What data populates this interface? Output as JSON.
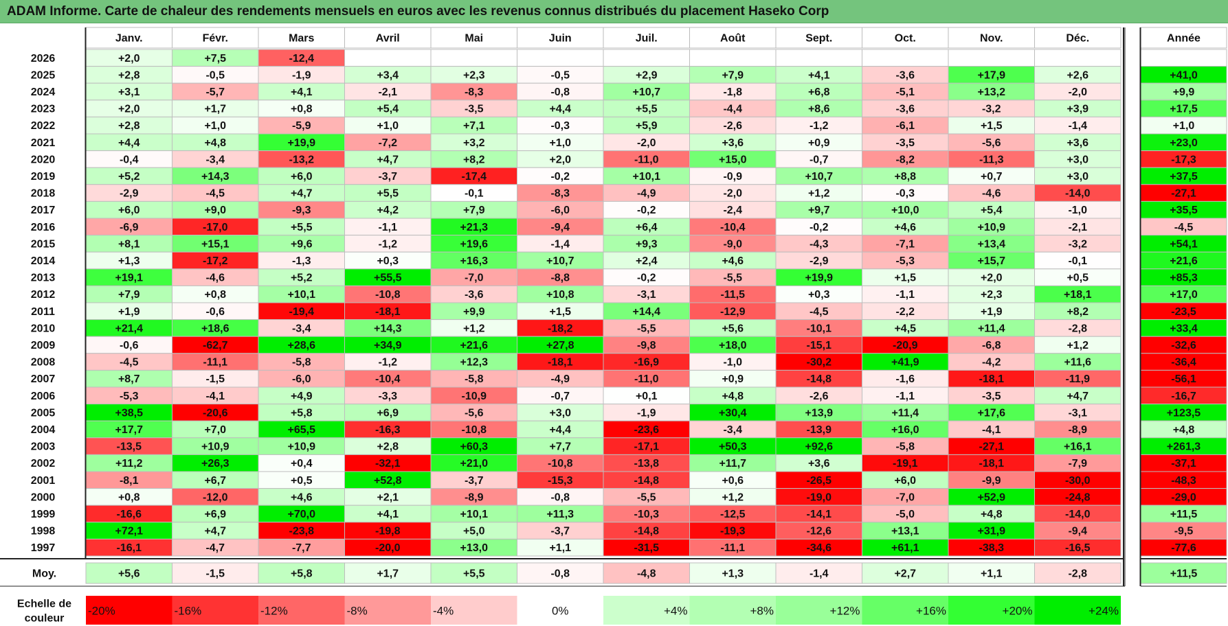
{
  "title": "ADAM Informe. Carte de chaleur des rendements mensuels en euros avec les revenus connus distribués du placement Haseko Corp",
  "chart_data": {
    "type": "heatmap",
    "columns": [
      "Janv.",
      "Févr.",
      "Mars",
      "Avril",
      "Mai",
      "Juin",
      "Juil.",
      "Août",
      "Sept.",
      "Oct.",
      "Nov.",
      "Déc."
    ],
    "annual_header": "Année",
    "rows": [
      {
        "year": "2026",
        "months": [
          "+2,0",
          "+7,5",
          "-12,4",
          "",
          "",
          "",
          "",
          "",
          "",
          "",
          "",
          ""
        ],
        "annual": ""
      },
      {
        "year": "2025",
        "months": [
          "+2,8",
          "-0,5",
          "-1,9",
          "+3,4",
          "+2,3",
          "-0,5",
          "+2,9",
          "+7,9",
          "+4,1",
          "-3,6",
          "+17,9",
          "+2,6"
        ],
        "annual": "+41,0"
      },
      {
        "year": "2024",
        "months": [
          "+3,1",
          "-5,7",
          "+4,1",
          "-2,1",
          "-8,3",
          "-0,8",
          "+10,7",
          "-1,8",
          "+6,8",
          "-5,1",
          "+13,2",
          "-2,0"
        ],
        "annual": "+9,9"
      },
      {
        "year": "2023",
        "months": [
          "+2,0",
          "+1,7",
          "+0,8",
          "+5,4",
          "-3,5",
          "+4,4",
          "+5,5",
          "-4,4",
          "+8,6",
          "-3,6",
          "-3,2",
          "+3,9"
        ],
        "annual": "+17,5"
      },
      {
        "year": "2022",
        "months": [
          "+2,8",
          "+1,0",
          "-5,9",
          "+1,0",
          "+7,1",
          "-0,3",
          "+5,9",
          "-2,6",
          "-1,2",
          "-6,1",
          "+1,5",
          "-1,4"
        ],
        "annual": "+1,0"
      },
      {
        "year": "2021",
        "months": [
          "+4,4",
          "+4,8",
          "+19,9",
          "-7,2",
          "+3,2",
          "+1,0",
          "-2,0",
          "+3,6",
          "+0,9",
          "-3,5",
          "-5,6",
          "+3,6"
        ],
        "annual": "+23,0"
      },
      {
        "year": "2020",
        "months": [
          "-0,4",
          "-3,4",
          "-13,2",
          "+4,7",
          "+8,2",
          "+2,0",
          "-11,0",
          "+15,0",
          "-0,7",
          "-8,2",
          "-11,3",
          "+3,0"
        ],
        "annual": "-17,3"
      },
      {
        "year": "2019",
        "months": [
          "+5,2",
          "+14,3",
          "+6,0",
          "-3,7",
          "-17,4",
          "-0,2",
          "+10,1",
          "-0,9",
          "+10,7",
          "+8,8",
          "+0,7",
          "+3,0"
        ],
        "annual": "+37,5"
      },
      {
        "year": "2018",
        "months": [
          "-2,9",
          "-4,5",
          "+4,7",
          "+5,5",
          "-0,1",
          "-8,3",
          "-4,9",
          "-2,0",
          "+1,2",
          "-0,3",
          "-4,6",
          "-14,0"
        ],
        "annual": "-27,1"
      },
      {
        "year": "2017",
        "months": [
          "+6,0",
          "+9,0",
          "-9,3",
          "+4,2",
          "+7,9",
          "-6,0",
          "-0,2",
          "-2,4",
          "+9,7",
          "+10,0",
          "+5,4",
          "-1,0"
        ],
        "annual": "+35,5"
      },
      {
        "year": "2016",
        "months": [
          "-6,9",
          "-17,0",
          "+5,5",
          "-1,1",
          "+21,3",
          "-9,4",
          "+6,4",
          "-10,4",
          "-0,2",
          "+4,6",
          "+10,9",
          "-2,1"
        ],
        "annual": "-4,5"
      },
      {
        "year": "2015",
        "months": [
          "+8,1",
          "+15,1",
          "+9,6",
          "-1,2",
          "+19,6",
          "-1,4",
          "+9,3",
          "-9,0",
          "-4,3",
          "-7,1",
          "+13,4",
          "-3,2"
        ],
        "annual": "+54,1"
      },
      {
        "year": "2014",
        "months": [
          "+1,3",
          "-17,2",
          "-1,3",
          "+0,3",
          "+16,3",
          "+10,7",
          "+2,4",
          "+4,6",
          "-2,9",
          "-5,3",
          "+15,7",
          "-0,1"
        ],
        "annual": "+21,6"
      },
      {
        "year": "2013",
        "months": [
          "+19,1",
          "-4,6",
          "+5,2",
          "+55,5",
          "-7,0",
          "-8,8",
          "-0,2",
          "-5,5",
          "+19,9",
          "+1,5",
          "+2,0",
          "+0,5"
        ],
        "annual": "+85,3"
      },
      {
        "year": "2012",
        "months": [
          "+7,9",
          "+0,8",
          "+10,1",
          "-10,8",
          "-3,6",
          "+10,8",
          "-3,1",
          "-11,5",
          "+0,3",
          "-1,1",
          "+2,3",
          "+18,1"
        ],
        "annual": "+17,0"
      },
      {
        "year": "2011",
        "months": [
          "+1,9",
          "-0,6",
          "-19,4",
          "-18,1",
          "+9,9",
          "+1,5",
          "+14,4",
          "-12,9",
          "-4,5",
          "-2,2",
          "+1,9",
          "+8,2"
        ],
        "annual": "-23,5"
      },
      {
        "year": "2010",
        "months": [
          "+21,4",
          "+18,6",
          "-3,4",
          "+14,3",
          "+1,2",
          "-18,2",
          "-5,5",
          "+5,6",
          "-10,1",
          "+4,5",
          "+11,4",
          "-2,8"
        ],
        "annual": "+33,4"
      },
      {
        "year": "2009",
        "months": [
          "-0,6",
          "-62,7",
          "+28,6",
          "+34,9",
          "+21,6",
          "+27,8",
          "-9,8",
          "+18,0",
          "-15,1",
          "-20,9",
          "-6,8",
          "+1,2"
        ],
        "annual": "-32,6"
      },
      {
        "year": "2008",
        "months": [
          "-4,5",
          "-11,1",
          "-5,8",
          "-1,2",
          "+12,3",
          "-18,1",
          "-16,9",
          "-1,0",
          "-30,2",
          "+41,9",
          "-4,2",
          "+11,6"
        ],
        "annual": "-36,4"
      },
      {
        "year": "2007",
        "months": [
          "+8,7",
          "-1,5",
          "-6,0",
          "-10,4",
          "-5,8",
          "-4,9",
          "-11,0",
          "+0,9",
          "-14,8",
          "-1,6",
          "-18,1",
          "-11,9"
        ],
        "annual": "-56,1"
      },
      {
        "year": "2006",
        "months": [
          "-5,3",
          "-4,1",
          "+4,9",
          "-3,3",
          "-10,9",
          "-0,7",
          "+0,1",
          "+4,8",
          "-2,6",
          "-1,1",
          "-3,5",
          "+4,7"
        ],
        "annual": "-16,7"
      },
      {
        "year": "2005",
        "months": [
          "+38,5",
          "-20,6",
          "+5,8",
          "+6,9",
          "-5,6",
          "+3,0",
          "-1,9",
          "+30,4",
          "+13,9",
          "+11,4",
          "+17,6",
          "-3,1"
        ],
        "annual": "+123,5"
      },
      {
        "year": "2004",
        "months": [
          "+17,7",
          "+7,0",
          "+65,5",
          "-16,3",
          "-10,8",
          "+4,4",
          "-23,6",
          "-3,4",
          "-13,9",
          "+16,0",
          "-4,1",
          "-8,9"
        ],
        "annual": "+4,8"
      },
      {
        "year": "2003",
        "months": [
          "-13,5",
          "+10,9",
          "+10,9",
          "+2,8",
          "+60,3",
          "+7,7",
          "-17,1",
          "+50,3",
          "+92,6",
          "-5,8",
          "-27,1",
          "+16,1"
        ],
        "annual": "+261,3"
      },
      {
        "year": "2002",
        "months": [
          "+11,2",
          "+26,3",
          "+0,4",
          "-32,1",
          "+21,0",
          "-10,8",
          "-13,8",
          "+11,7",
          "+3,6",
          "-19,1",
          "-18,1",
          "-7,9"
        ],
        "annual": "-37,1"
      },
      {
        "year": "2001",
        "months": [
          "-8,1",
          "+6,7",
          "+0,5",
          "+52,8",
          "-3,7",
          "-15,3",
          "-14,8",
          "+0,6",
          "-26,5",
          "+6,0",
          "-9,9",
          "-30,0"
        ],
        "annual": "-48,3"
      },
      {
        "year": "2000",
        "months": [
          "+0,8",
          "-12,0",
          "+4,6",
          "+2,1",
          "-8,9",
          "-0,8",
          "-5,5",
          "+1,2",
          "-19,0",
          "-7,0",
          "+52,9",
          "-24,8"
        ],
        "annual": "-29,0"
      },
      {
        "year": "1999",
        "months": [
          "-16,6",
          "+6,9",
          "+70,0",
          "+4,1",
          "+10,1",
          "+11,3",
          "-10,3",
          "-12,5",
          "-14,1",
          "-5,0",
          "+4,8",
          "-14,0"
        ],
        "annual": "+11,5"
      },
      {
        "year": "1998",
        "months": [
          "+72,1",
          "+4,7",
          "-23,8",
          "-19,8",
          "+5,0",
          "-3,7",
          "-14,8",
          "-19,3",
          "-12,6",
          "+13,1",
          "+31,9",
          "-9,4"
        ],
        "annual": "-9,5"
      },
      {
        "year": "1997",
        "months": [
          "-16,1",
          "-4,7",
          "-7,7",
          "-20,0",
          "+13,0",
          "+1,1",
          "-31,5",
          "-11,1",
          "-34,6",
          "+61,1",
          "-38,3",
          "-16,5"
        ],
        "annual": "-77,6"
      }
    ],
    "average": {
      "label": "Moy.",
      "months": [
        "+5,6",
        "-1,5",
        "+5,8",
        "+1,7",
        "+5,5",
        "-0,8",
        "-4,8",
        "+1,3",
        "-1,4",
        "+2,7",
        "+1,1",
        "-2,8"
      ],
      "annual": "+11,5"
    },
    "scale": {
      "label_lines": [
        "Echelle de",
        "couleur"
      ],
      "stops": [
        {
          "label": "-20%",
          "value": -20,
          "color": "#ff0000"
        },
        {
          "label": "-16%",
          "value": -16,
          "color": "#ff3333"
        },
        {
          "label": "-12%",
          "value": -12,
          "color": "#ff6666"
        },
        {
          "label": "-8%",
          "value": -8,
          "color": "#ff9999"
        },
        {
          "label": "-4%",
          "value": -4,
          "color": "#ffcccc"
        },
        {
          "label": "0%",
          "value": 0,
          "color": "#ffffff"
        },
        {
          "label": "+4%",
          "value": 4,
          "color": "#ccffcc"
        },
        {
          "label": "+8%",
          "value": 8,
          "color": "#b3ffb3"
        },
        {
          "label": "+12%",
          "value": 12,
          "color": "#99ff99"
        },
        {
          "label": "+16%",
          "value": 16,
          "color": "#66ff66"
        },
        {
          "label": "+20%",
          "value": 20,
          "color": "#33ff33"
        },
        {
          "label": "+24%",
          "value": 24,
          "color": "#00ee00"
        }
      ]
    }
  }
}
